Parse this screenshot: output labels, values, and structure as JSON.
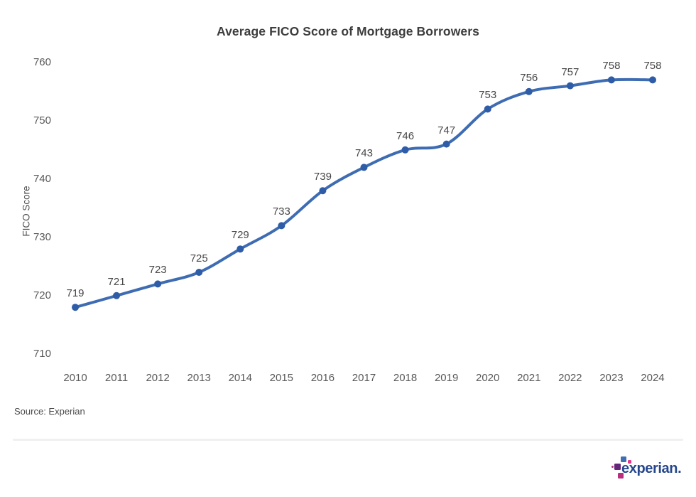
{
  "chart_data": {
    "type": "line",
    "title": "Average FICO Score of Mortgage Borrowers",
    "xlabel": "",
    "ylabel": "FICO Score",
    "categories": [
      "2010",
      "2011",
      "2012",
      "2013",
      "2014",
      "2015",
      "2016",
      "2017",
      "2018",
      "2019",
      "2020",
      "2021",
      "2022",
      "2023",
      "2024"
    ],
    "series": [
      {
        "name": "Average FICO Score",
        "values": [
          719,
          721,
          723,
          725,
          729,
          733,
          739,
          743,
          746,
          747,
          753,
          756,
          757,
          758,
          758
        ]
      }
    ],
    "ylim": [
      710,
      760
    ],
    "yticks": [
      710,
      720,
      730,
      740,
      750,
      760
    ],
    "grid": false,
    "legend_position": "none",
    "data_labels_visible": true,
    "line_color": "#3e6cb2",
    "point_color": "#2e5ca6"
  },
  "footer": {
    "source": "Source: Experian",
    "logo_text": "experian.",
    "logo_colors": {
      "text": "#26478d",
      "blue": "#406eb3",
      "purple": "#632678",
      "magenta": "#ba2f7d",
      "pink": "#e0358b"
    }
  }
}
